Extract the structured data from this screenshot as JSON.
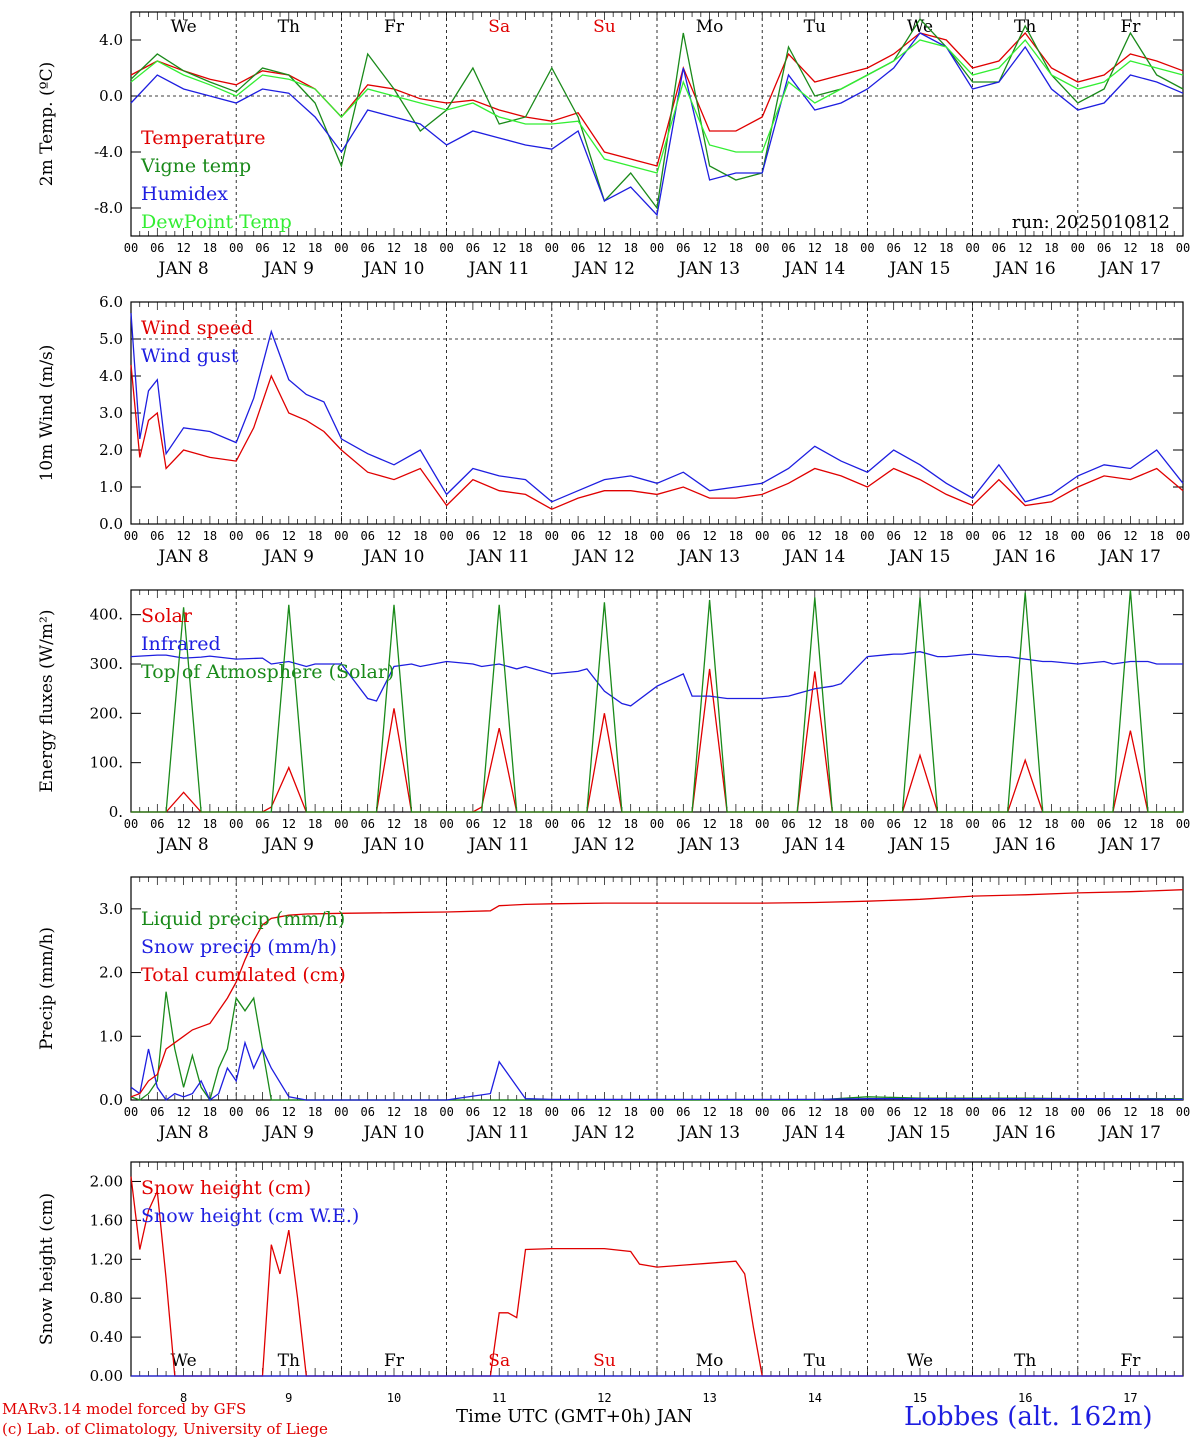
{
  "colors": {
    "red": "#e00000",
    "green": "#1a8a1a",
    "blue": "#1e1ee0",
    "lightgreen": "#33ee33",
    "axis": "#000000"
  },
  "time_axis": {
    "hour_labels": [
      "00",
      "06",
      "12",
      "18"
    ],
    "final_hour_label": "00",
    "date_labels": [
      "JAN 8",
      "JAN 9",
      "JAN 10",
      "JAN 11",
      "JAN 12",
      "JAN 13",
      "JAN 14",
      "JAN 15",
      "JAN 16",
      "JAN 17"
    ],
    "weekdays": [
      "We",
      "Th",
      "Fr",
      "Sa",
      "Su",
      "Mo",
      "Tu",
      "We",
      "Th",
      "Fr"
    ],
    "weekday_colors": [
      "#000000",
      "#000000",
      "#000000",
      "#e00000",
      "#e00000",
      "#000000",
      "#000000",
      "#000000",
      "#000000",
      "#000000"
    ],
    "bottom_day_numbers": [
      "8",
      "9",
      "10",
      "11",
      "12",
      "13",
      "14",
      "15",
      "16",
      "17"
    ]
  },
  "footer": {
    "model": "MARv3.14 model forced by GFS",
    "credit": "(c) Lab. of Climatology, University of Liege",
    "xlabel": "Time UTC (GMT+0h) JAN",
    "station": "Lobbes (alt. 162m)"
  },
  "chart_data": [
    {
      "type": "line",
      "ylabel": "2m Temp. (ºC)",
      "yticks": [
        "4.0",
        "0.0",
        "-4.0",
        "-8.0"
      ],
      "ytick_values": [
        4,
        0,
        -4,
        -8
      ],
      "ylim": [
        -10,
        6
      ],
      "reference_lines": [
        0
      ],
      "run_label": "run: 2025010812",
      "x": [
        0,
        6,
        12,
        18,
        24,
        30,
        36,
        42,
        48,
        54,
        60,
        66,
        72,
        78,
        84,
        90,
        96,
        102,
        108,
        114,
        120,
        126,
        132,
        138,
        144,
        150,
        156,
        162,
        168,
        174,
        180,
        186,
        192,
        198,
        204,
        210,
        216,
        222,
        228,
        234,
        240
      ],
      "series": [
        {
          "name": "Temperature",
          "color": "red",
          "values": [
            1.5,
            2.5,
            1.8,
            1.2,
            0.8,
            1.8,
            1.5,
            0.5,
            -1.5,
            0.8,
            0.5,
            -0.2,
            -0.5,
            -0.3,
            -1.0,
            -1.5,
            -1.8,
            -1.2,
            -4.0,
            -4.5,
            -5.0,
            2.0,
            -2.5,
            -2.5,
            -1.5,
            3.0,
            1.0,
            1.5,
            2.0,
            3.0,
            4.5,
            4.0,
            2.0,
            2.5,
            4.5,
            2.0,
            1.0,
            1.5,
            3.0,
            2.5,
            1.8
          ]
        },
        {
          "name": "Vigne temp",
          "color": "green",
          "values": [
            1.2,
            3.0,
            1.8,
            1.0,
            0.3,
            2.0,
            1.5,
            -0.5,
            -5.0,
            3.0,
            0.5,
            -2.5,
            -1.0,
            2.0,
            -2.0,
            -1.5,
            2.0,
            -1.5,
            -7.5,
            -5.5,
            -8.0,
            4.5,
            -5.0,
            -6.0,
            -5.5,
            3.5,
            0.0,
            0.5,
            1.5,
            2.5,
            5.5,
            3.5,
            1.0,
            1.0,
            5.0,
            1.5,
            -0.5,
            0.5,
            4.5,
            1.5,
            0.5
          ]
        },
        {
          "name": "Humidex",
          "color": "blue",
          "values": [
            -0.5,
            1.5,
            0.5,
            0.0,
            -0.5,
            0.5,
            0.2,
            -1.5,
            -4.0,
            -1.0,
            -1.5,
            -2.0,
            -3.5,
            -2.5,
            -3.0,
            -3.5,
            -3.8,
            -2.5,
            -7.5,
            -6.5,
            -8.5,
            2.0,
            -6.0,
            -5.5,
            -5.5,
            1.5,
            -1.0,
            -0.5,
            0.5,
            2.0,
            4.5,
            3.5,
            0.5,
            1.0,
            3.5,
            0.5,
            -1.0,
            -0.5,
            1.5,
            1.0,
            0.2
          ]
        },
        {
          "name": "DewPoint Temp",
          "color": "lightgreen",
          "values": [
            1.0,
            2.5,
            1.5,
            0.8,
            0.0,
            1.5,
            1.2,
            0.5,
            -1.5,
            0.5,
            0.0,
            -0.5,
            -1.0,
            -0.5,
            -1.5,
            -2.0,
            -2.0,
            -1.8,
            -4.5,
            -5.0,
            -5.5,
            1.0,
            -3.5,
            -4.0,
            -4.0,
            1.0,
            -0.5,
            0.5,
            1.5,
            2.5,
            4.0,
            3.5,
            1.5,
            2.0,
            4.0,
            1.5,
            0.5,
            1.0,
            2.5,
            2.0,
            1.5
          ]
        }
      ]
    },
    {
      "type": "line",
      "ylabel": "10m Wind (m/s)",
      "yticks": [
        "6.0",
        "5.0",
        "4.0",
        "3.0",
        "2.0",
        "1.0",
        "0.0"
      ],
      "ytick_values": [
        6,
        5,
        4,
        3,
        2,
        1,
        0
      ],
      "ylim": [
        0,
        6
      ],
      "reference_lines": [
        5
      ],
      "x": [
        0,
        2,
        4,
        6,
        8,
        12,
        18,
        24,
        28,
        32,
        36,
        40,
        44,
        48,
        54,
        60,
        66,
        72,
        78,
        84,
        90,
        96,
        102,
        108,
        114,
        120,
        126,
        132,
        138,
        144,
        150,
        156,
        162,
        168,
        174,
        180,
        186,
        192,
        198,
        204,
        210,
        216,
        222,
        228,
        234,
        240
      ],
      "series": [
        {
          "name": "Wind speed",
          "color": "red",
          "values": [
            4.3,
            1.8,
            2.8,
            3.0,
            1.5,
            2.0,
            1.8,
            1.7,
            2.6,
            4.0,
            3.0,
            2.8,
            2.5,
            2.0,
            1.4,
            1.2,
            1.5,
            0.5,
            1.2,
            0.9,
            0.8,
            0.4,
            0.7,
            0.9,
            0.9,
            0.8,
            1.0,
            0.7,
            0.7,
            0.8,
            1.1,
            1.5,
            1.3,
            1.0,
            1.5,
            1.2,
            0.8,
            0.5,
            1.2,
            0.5,
            0.6,
            1.0,
            1.3,
            1.2,
            1.5,
            0.9
          ]
        },
        {
          "name": "Wind gust",
          "color": "blue",
          "values": [
            5.7,
            2.3,
            3.6,
            3.9,
            1.9,
            2.6,
            2.5,
            2.2,
            3.4,
            5.2,
            3.9,
            3.5,
            3.3,
            2.3,
            1.9,
            1.6,
            2.0,
            0.8,
            1.5,
            1.3,
            1.2,
            0.6,
            0.9,
            1.2,
            1.3,
            1.1,
            1.4,
            0.9,
            1.0,
            1.1,
            1.5,
            2.1,
            1.7,
            1.4,
            2.0,
            1.6,
            1.1,
            0.7,
            1.6,
            0.6,
            0.8,
            1.3,
            1.6,
            1.5,
            2.0,
            1.1
          ]
        }
      ]
    },
    {
      "type": "line",
      "ylabel": "Energy fluxes (W/m²)",
      "yticks": [
        "400.",
        "300.",
        "200.",
        "100.",
        "0."
      ],
      "ytick_values": [
        400,
        300,
        200,
        100,
        0
      ],
      "ylim": [
        0,
        450
      ],
      "reference_lines": [],
      "x": [
        0,
        6,
        8,
        12,
        16,
        18,
        24,
        30,
        32,
        36,
        40,
        42,
        48,
        54,
        56,
        60,
        64,
        66,
        72,
        78,
        80,
        84,
        88,
        90,
        96,
        102,
        104,
        108,
        112,
        114,
        120,
        126,
        128,
        132,
        136,
        138,
        144,
        150,
        152,
        156,
        160,
        162,
        168,
        174,
        176,
        180,
        184,
        186,
        192,
        198,
        200,
        204,
        208,
        210,
        216,
        222,
        224,
        228,
        232,
        234,
        240
      ],
      "series": [
        {
          "name": "Solar",
          "color": "red",
          "values": [
            0,
            0,
            0,
            40,
            0,
            0,
            0,
            0,
            10,
            90,
            0,
            0,
            0,
            0,
            0,
            210,
            0,
            0,
            0,
            0,
            10,
            170,
            0,
            0,
            0,
            0,
            0,
            200,
            0,
            0,
            0,
            0,
            0,
            290,
            0,
            0,
            0,
            0,
            0,
            285,
            0,
            0,
            0,
            0,
            0,
            115,
            0,
            0,
            0,
            0,
            0,
            105,
            0,
            0,
            0,
            0,
            0,
            165,
            0,
            0,
            0
          ]
        },
        {
          "name": "Infrared",
          "color": "blue",
          "values": [
            315,
            318,
            318,
            312,
            314,
            316,
            310,
            312,
            300,
            305,
            295,
            300,
            300,
            230,
            225,
            295,
            300,
            295,
            305,
            300,
            295,
            300,
            290,
            295,
            280,
            285,
            290,
            245,
            220,
            215,
            255,
            280,
            235,
            235,
            230,
            230,
            230,
            235,
            240,
            250,
            255,
            260,
            315,
            320,
            320,
            325,
            315,
            315,
            320,
            315,
            315,
            310,
            305,
            305,
            300,
            305,
            300,
            305,
            305,
            300,
            300
          ]
        },
        {
          "name": "Top of Atmosphere (Solar)",
          "color": "green",
          "values": [
            0,
            0,
            0,
            415,
            0,
            0,
            0,
            0,
            0,
            420,
            0,
            0,
            0,
            0,
            0,
            420,
            0,
            0,
            0,
            0,
            0,
            420,
            0,
            0,
            0,
            0,
            0,
            425,
            0,
            0,
            0,
            0,
            0,
            430,
            0,
            0,
            0,
            0,
            0,
            435,
            0,
            0,
            0,
            0,
            0,
            435,
            0,
            0,
            0,
            0,
            0,
            445,
            0,
            0,
            0,
            0,
            0,
            450,
            0,
            0,
            0
          ]
        }
      ]
    },
    {
      "type": "line",
      "ylabel": "Precip (mm/h)",
      "yticks": [
        "3.0",
        "2.0",
        "1.0",
        "0.0"
      ],
      "ytick_values": [
        3,
        2,
        1,
        0
      ],
      "ylim": [
        0,
        3.5
      ],
      "reference_lines": [],
      "x": [
        0,
        2,
        4,
        6,
        8,
        10,
        12,
        14,
        16,
        18,
        20,
        22,
        24,
        26,
        28,
        30,
        32,
        36,
        40,
        48,
        60,
        72,
        82,
        84,
        90,
        96,
        108,
        120,
        132,
        144,
        156,
        168,
        180,
        192,
        204,
        216,
        228,
        240
      ],
      "series": [
        {
          "name": "Liquid precip (mm/h)",
          "color": "green",
          "values": [
            0.05,
            0.0,
            0.1,
            0.3,
            1.7,
            0.8,
            0.2,
            0.7,
            0.2,
            0.0,
            0.5,
            0.8,
            1.6,
            1.4,
            1.6,
            0.8,
            0.0,
            0.0,
            0.0,
            0.0,
            0.0,
            0.0,
            0.0,
            0.0,
            0.0,
            0.0,
            0.0,
            0.0,
            0.0,
            0.0,
            0.0,
            0.05,
            0.03,
            0.03,
            0.03,
            0.02,
            0.02,
            0.02
          ]
        },
        {
          "name": "Snow precip (mm/h)",
          "color": "blue",
          "values": [
            0.2,
            0.1,
            0.8,
            0.2,
            0.0,
            0.1,
            0.05,
            0.1,
            0.3,
            0.0,
            0.1,
            0.5,
            0.3,
            0.9,
            0.5,
            0.8,
            0.5,
            0.05,
            0.0,
            0.0,
            0.0,
            0.0,
            0.1,
            0.6,
            0.02,
            0.01,
            0.01,
            0.01,
            0.01,
            0.01,
            0.01,
            0.02,
            0.02,
            0.02,
            0.02,
            0.02,
            0.02,
            0.01
          ]
        },
        {
          "name": "Total cumulated (cm)",
          "color": "red",
          "values": [
            0.05,
            0.1,
            0.3,
            0.4,
            0.8,
            0.9,
            1.0,
            1.1,
            1.15,
            1.2,
            1.4,
            1.6,
            1.85,
            2.2,
            2.5,
            2.75,
            2.85,
            2.9,
            2.92,
            2.93,
            2.94,
            2.95,
            2.97,
            3.05,
            3.07,
            3.08,
            3.09,
            3.09,
            3.09,
            3.09,
            3.1,
            3.12,
            3.15,
            3.2,
            3.22,
            3.25,
            3.27,
            3.3
          ]
        }
      ]
    },
    {
      "type": "line",
      "ylabel": "Snow height (cm)",
      "yticks": [
        "2.00",
        "1.60",
        "1.20",
        "0.80",
        "0.40",
        "0.00"
      ],
      "ytick_values": [
        2.0,
        1.6,
        1.2,
        0.8,
        0.4,
        0.0
      ],
      "ylim": [
        0,
        2.2
      ],
      "reference_lines": [],
      "x": [
        0,
        2,
        4,
        6,
        8,
        10,
        12,
        18,
        24,
        30,
        32,
        34,
        36,
        38,
        40,
        42,
        48,
        60,
        72,
        82,
        84,
        86,
        88,
        90,
        96,
        108,
        114,
        116,
        120,
        126,
        132,
        138,
        140,
        142,
        144,
        148,
        156,
        168,
        180,
        192,
        204,
        216,
        228,
        240
      ],
      "series": [
        {
          "name": "Snow height (cm)",
          "color": "red",
          "values": [
            2.05,
            1.3,
            1.7,
            1.9,
            1.0,
            0.0,
            0.0,
            0.0,
            0.0,
            0.0,
            1.35,
            1.05,
            1.5,
            0.8,
            0.0,
            0.0,
            0.0,
            0.0,
            0.0,
            0.0,
            0.65,
            0.65,
            0.6,
            1.3,
            1.31,
            1.31,
            1.28,
            1.15,
            1.12,
            1.14,
            1.16,
            1.18,
            1.05,
            0.5,
            0.0,
            0.0,
            0.0,
            0.0,
            0.0,
            0.0,
            0.0,
            0.0,
            0.0,
            0.0
          ]
        },
        {
          "name": "Snow height (cm W.E.)",
          "color": "blue",
          "values": [
            0,
            0,
            0,
            0,
            0,
            0,
            0,
            0,
            0,
            0,
            0,
            0,
            0,
            0,
            0,
            0,
            0,
            0,
            0,
            0,
            0,
            0,
            0,
            0,
            0,
            0,
            0,
            0,
            0,
            0,
            0,
            0,
            0,
            0,
            0,
            0,
            0,
            0,
            0,
            0,
            0,
            0,
            0,
            0
          ]
        }
      ]
    }
  ]
}
